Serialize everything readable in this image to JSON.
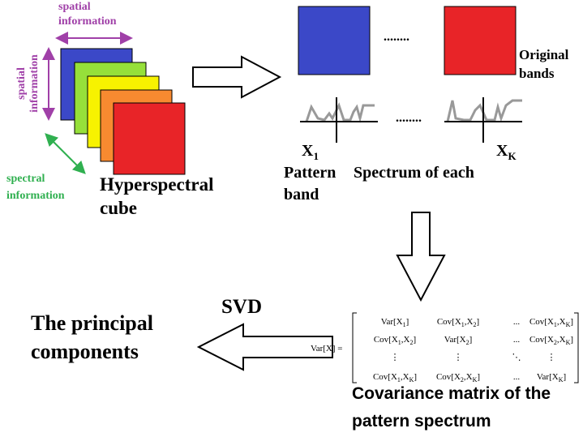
{
  "labels": {
    "top_spatial": [
      "spatial",
      "information"
    ],
    "side_spatial": [
      "spatial",
      "information"
    ],
    "spectral": [
      "spectral",
      "information"
    ],
    "cube": [
      "Hyperspectral",
      "cube"
    ],
    "dots_bands": "........",
    "dots_spectra": "........",
    "original_bands": [
      "Original",
      "bands"
    ],
    "x_first": {
      "base": "X",
      "sub": "1"
    },
    "x_last": {
      "base": "X",
      "sub": "K"
    },
    "pattern": "Pattern",
    "spectrum_of_each": "Spectrum of each",
    "band": "band",
    "svd": "SVD",
    "principal": [
      "The principal",
      "components"
    ],
    "caption": [
      "Covariance matrix of the",
      "pattern spectrum"
    ]
  },
  "matrix": {
    "lhs": [
      "Var[X] ="
    ],
    "rows": [
      [
        [
          "Var[X",
          "1",
          "]"
        ],
        [
          "Cov[X",
          "1",
          ",X",
          "2",
          "]"
        ],
        [
          "..."
        ],
        [
          "Cov[X",
          "1",
          ",X",
          "K",
          "]"
        ]
      ],
      [
        [
          "Cov[X",
          "1",
          ",X",
          "2",
          "]"
        ],
        [
          "Var[X",
          "2",
          "]"
        ],
        [
          "..."
        ],
        [
          "Cov[X",
          "2",
          ",X",
          "K",
          "]"
        ]
      ],
      [
        [
          "⋮"
        ],
        [
          "⋮"
        ],
        [
          "⋱"
        ],
        [
          "⋮"
        ]
      ],
      [
        [
          "Cov[X",
          "1",
          ",X",
          "K",
          "]"
        ],
        [
          "Cov[X",
          "2",
          ",X",
          "K",
          "]"
        ],
        [
          "..."
        ],
        [
          "Var[X",
          "K",
          "]"
        ]
      ]
    ]
  }
}
